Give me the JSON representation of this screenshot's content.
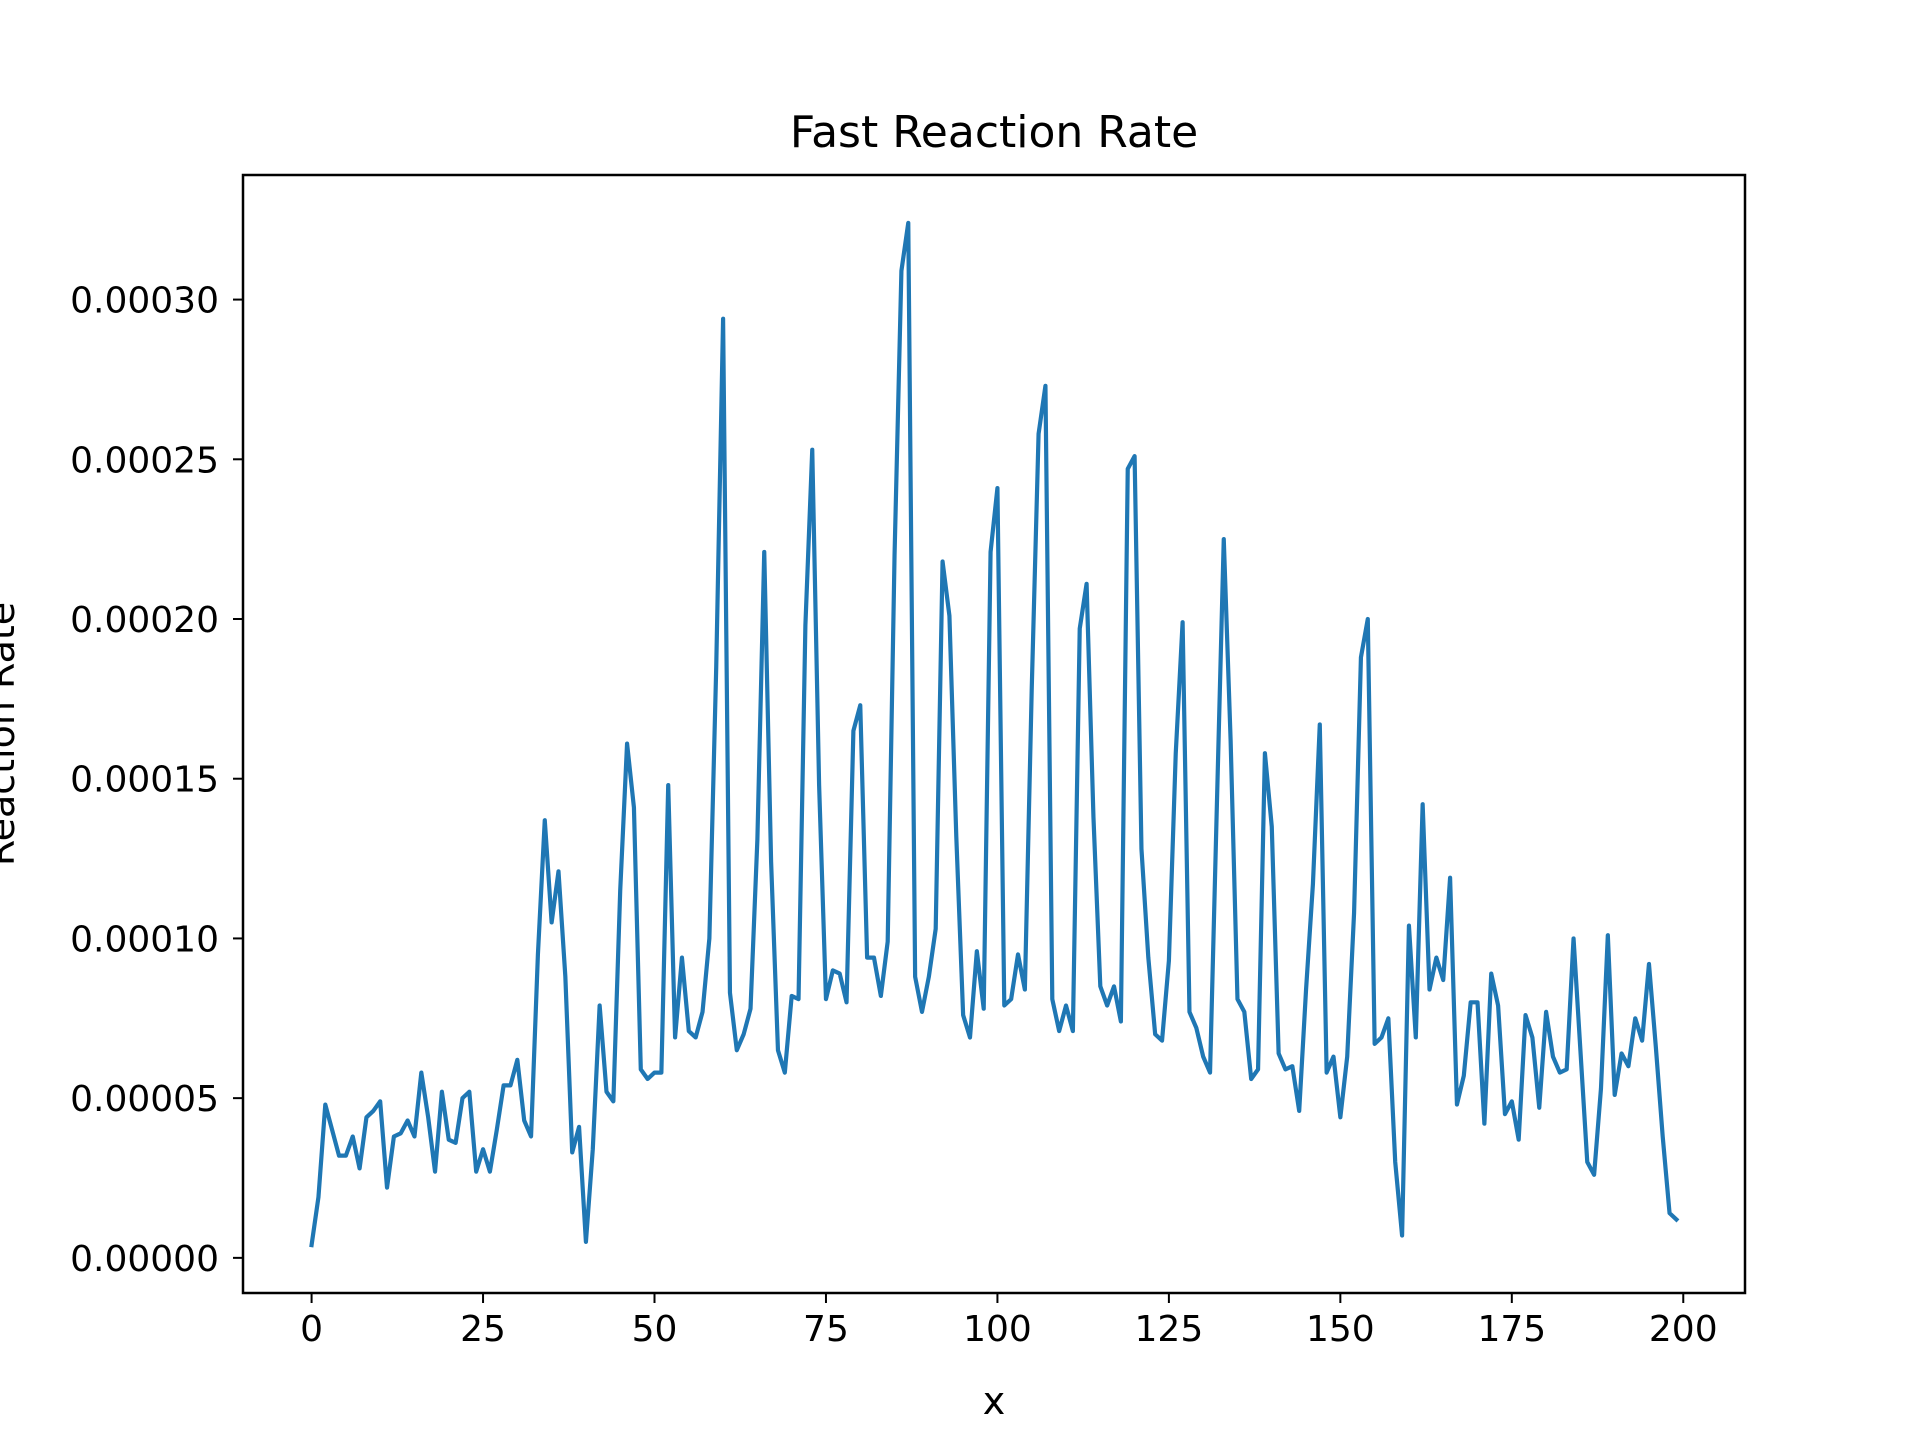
{
  "chart_data": {
    "type": "line",
    "title": "Fast Reaction Rate",
    "xlabel": "x",
    "ylabel": "Reaction Rate",
    "xlim": [
      -10,
      209
    ],
    "ylim": [
      -1.1e-05,
      0.000339
    ],
    "xticks": [
      0,
      25,
      50,
      75,
      100,
      125,
      150,
      175,
      200
    ],
    "xtick_labels": [
      "0",
      "25",
      "50",
      "75",
      "100",
      "125",
      "150",
      "175",
      "200"
    ],
    "yticks": [
      0.0,
      5e-05,
      0.0001,
      0.00015,
      0.0002,
      0.00025,
      0.0003
    ],
    "ytick_labels": [
      "0.00000",
      "0.00005",
      "0.00010",
      "0.00015",
      "0.00020",
      "0.00025",
      "0.00030"
    ],
    "grid": false,
    "color": "#1f77b4",
    "series": [
      {
        "name": "Reaction Rate",
        "x": [
          0,
          1,
          2,
          3,
          4,
          5,
          6,
          7,
          8,
          9,
          10,
          11,
          12,
          13,
          14,
          15,
          16,
          17,
          18,
          19,
          20,
          21,
          22,
          23,
          24,
          25,
          26,
          27,
          28,
          29,
          30,
          31,
          32,
          33,
          34,
          35,
          36,
          37,
          38,
          39,
          40,
          41,
          42,
          43,
          44,
          45,
          46,
          47,
          48,
          49,
          50,
          51,
          52,
          53,
          54,
          55,
          56,
          57,
          58,
          59,
          60,
          61,
          62,
          63,
          64,
          65,
          66,
          67,
          68,
          69,
          70,
          71,
          72,
          73,
          74,
          75,
          76,
          77,
          78,
          79,
          80,
          81,
          82,
          83,
          84,
          85,
          86,
          87,
          88,
          89,
          90,
          91,
          92,
          93,
          94,
          95,
          96,
          97,
          98,
          99,
          100,
          101,
          102,
          103,
          104,
          105,
          106,
          107,
          108,
          109,
          110,
          111,
          112,
          113,
          114,
          115,
          116,
          117,
          118,
          119,
          120,
          121,
          122,
          123,
          124,
          125,
          126,
          127,
          128,
          129,
          130,
          131,
          132,
          133,
          134,
          135,
          136,
          137,
          138,
          139,
          140,
          141,
          142,
          143,
          144,
          145,
          146,
          147,
          148,
          149,
          150,
          151,
          152,
          153,
          154,
          155,
          156,
          157,
          158,
          159,
          160,
          161,
          162,
          163,
          164,
          165,
          166,
          167,
          168,
          169,
          170,
          171,
          172,
          173,
          174,
          175,
          176,
          177,
          178,
          179,
          180,
          181,
          182,
          183,
          184,
          185,
          186,
          187,
          188,
          189,
          190,
          191,
          192,
          193,
          194,
          195,
          196,
          197,
          198,
          199
        ],
        "values": [
          4e-06,
          1.9e-05,
          4.8e-05,
          4e-05,
          3.2e-05,
          3.2e-05,
          3.8e-05,
          2.8e-05,
          4.4e-05,
          4.6e-05,
          4.9e-05,
          2.2e-05,
          3.8e-05,
          3.9e-05,
          4.3e-05,
          3.8e-05,
          5.8e-05,
          4.4e-05,
          2.7e-05,
          5.2e-05,
          3.7e-05,
          3.6e-05,
          5e-05,
          5.2e-05,
          2.7e-05,
          3.4e-05,
          2.7e-05,
          4e-05,
          5.4e-05,
          5.4e-05,
          6.2e-05,
          4.3e-05,
          3.8e-05,
          9.5e-05,
          0.000137,
          0.000105,
          0.000121,
          8.8e-05,
          3.3e-05,
          4.1e-05,
          5e-06,
          3.4e-05,
          7.9e-05,
          5.2e-05,
          4.9e-05,
          0.000115,
          0.000161,
          0.000141,
          5.9e-05,
          5.6e-05,
          5.8e-05,
          5.8e-05,
          0.000148,
          6.9e-05,
          9.4e-05,
          7.1e-05,
          6.9e-05,
          7.7e-05,
          0.0001,
          0.000185,
          0.000294,
          8.3e-05,
          6.5e-05,
          7e-05,
          7.8e-05,
          0.000131,
          0.000221,
          0.000124,
          6.5e-05,
          5.8e-05,
          8.2e-05,
          8.1e-05,
          0.000198,
          0.000253,
          0.000148,
          8.1e-05,
          9e-05,
          8.9e-05,
          8e-05,
          0.000165,
          0.000173,
          9.4e-05,
          9.4e-05,
          8.2e-05,
          9.9e-05,
          0.00022,
          0.000309,
          0.000324,
          8.8e-05,
          7.7e-05,
          8.8e-05,
          0.000103,
          0.000218,
          0.000201,
          0.000132,
          7.6e-05,
          6.9e-05,
          9.6e-05,
          7.8e-05,
          0.000221,
          0.000241,
          7.9e-05,
          8.1e-05,
          9.5e-05,
          8.4e-05,
          0.000178,
          0.000258,
          0.000273,
          8.1e-05,
          7.1e-05,
          7.9e-05,
          7.1e-05,
          0.000197,
          0.000211,
          0.000138,
          8.5e-05,
          7.9e-05,
          8.5e-05,
          7.4e-05,
          0.000247,
          0.000251,
          0.000128,
          9.4e-05,
          7e-05,
          6.8e-05,
          9.3e-05,
          0.000158,
          0.000199,
          7.7e-05,
          7.2e-05,
          6.3e-05,
          5.8e-05,
          0.000142,
          0.000225,
          0.000162,
          8.1e-05,
          7.7e-05,
          5.6e-05,
          5.9e-05,
          0.000158,
          0.000135,
          6.4e-05,
          5.9e-05,
          6e-05,
          4.6e-05,
          8.4e-05,
          0.000117,
          0.000167,
          5.8e-05,
          6.3e-05,
          4.4e-05,
          6.3e-05,
          0.000108,
          0.000188,
          0.0002,
          6.7e-05,
          6.9e-05,
          7.5e-05,
          3e-05,
          7e-06,
          0.000104,
          6.9e-05,
          0.000142,
          8.4e-05,
          9.4e-05,
          8.7e-05,
          0.000119,
          4.8e-05,
          5.7e-05,
          8e-05,
          8e-05,
          4.2e-05,
          8.9e-05,
          7.9e-05,
          4.5e-05,
          4.9e-05,
          3.7e-05,
          7.6e-05,
          6.9e-05,
          4.7e-05,
          7.7e-05,
          6.3e-05,
          5.8e-05,
          5.9e-05,
          0.0001,
          6.5e-05,
          3e-05,
          2.6e-05,
          5.3e-05,
          0.000101,
          5.1e-05,
          6.4e-05,
          6e-05,
          7.5e-05,
          6.8e-05,
          9.2e-05,
          6.6e-05,
          3.8e-05,
          1.4e-05,
          1.2e-05
        ]
      }
    ]
  }
}
